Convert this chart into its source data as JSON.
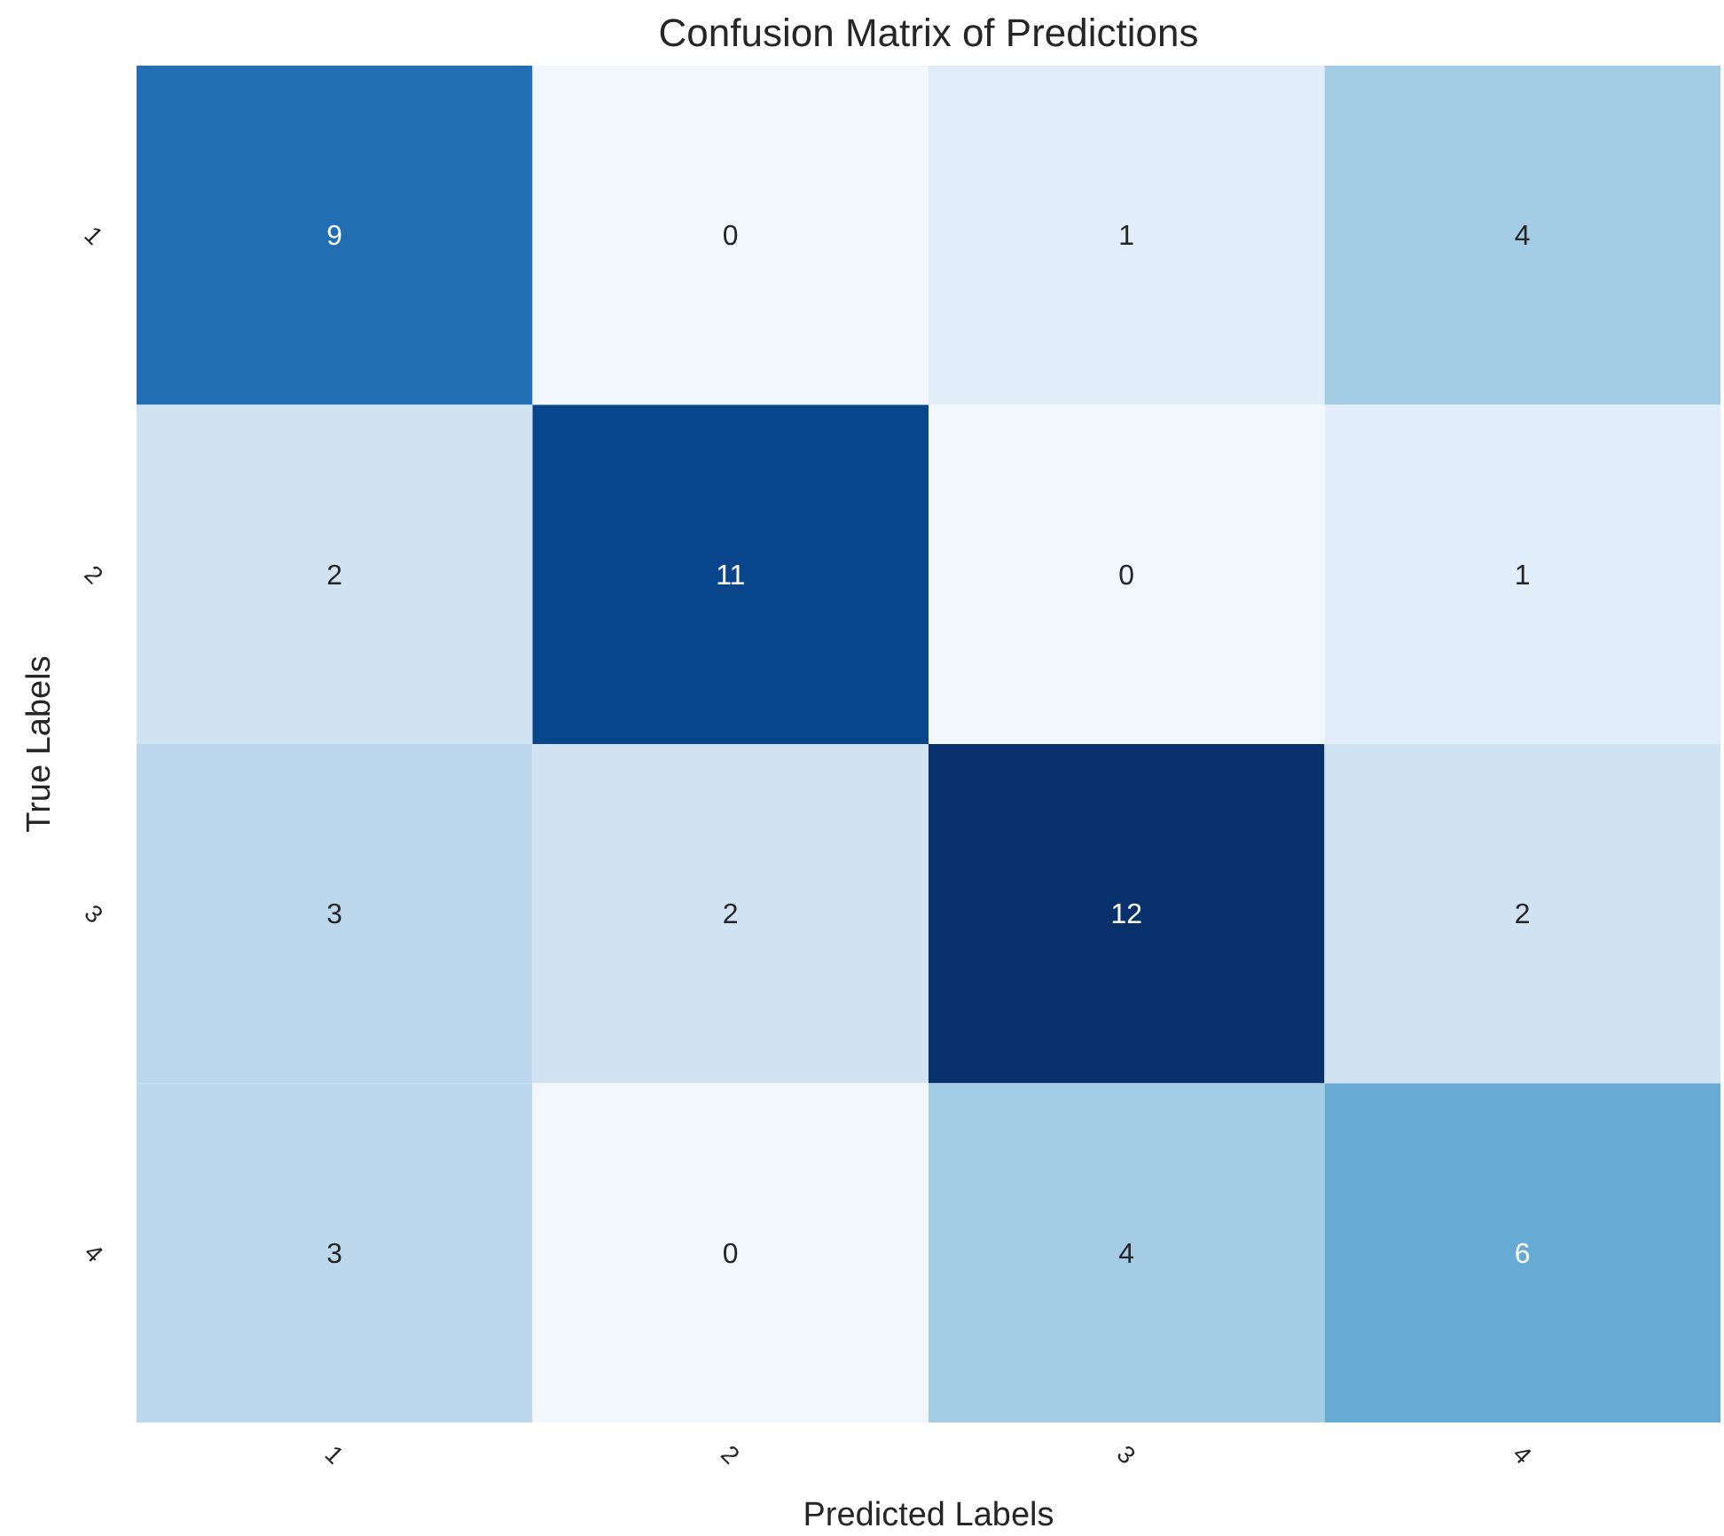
{
  "chart_data": {
    "type": "heatmap",
    "title": "Confusion Matrix of Predictions",
    "xlabel": "Predicted Labels",
    "ylabel": "True Labels",
    "categories": [
      "1",
      "2",
      "3",
      "4"
    ],
    "y_categories": [
      "1",
      "2",
      "3",
      "4"
    ],
    "cells": [
      [
        9,
        0,
        1,
        4
      ],
      [
        2,
        11,
        0,
        1
      ],
      [
        3,
        2,
        12,
        2
      ],
      [
        3,
        0,
        4,
        6
      ]
    ],
    "data_labels": true
  }
}
